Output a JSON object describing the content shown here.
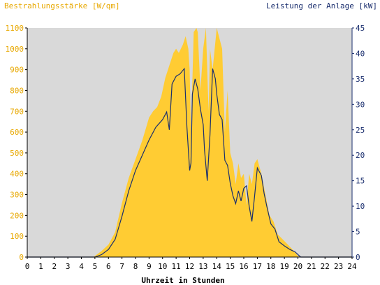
{
  "chart_data": {
    "type": "area",
    "left_axis_title": "Bestrahlungsstärke [W/qm]",
    "right_axis_title": "Leistung der Anlage [kW]",
    "xlabel": "Uhrzeit in Stunden",
    "x_ticks": [
      "0",
      "1",
      "2",
      "3",
      "4",
      "5",
      "6",
      "7",
      "8",
      "9",
      "10",
      "11",
      "12",
      "13",
      "14",
      "15",
      "16",
      "17",
      "18",
      "19",
      "20",
      "21",
      "22",
      "23",
      "24"
    ],
    "y_left_ticks": [
      "0",
      "100",
      "200",
      "300",
      "400",
      "500",
      "600",
      "700",
      "800",
      "900",
      "1000",
      "1100"
    ],
    "y_right_ticks": [
      "0",
      "5",
      "10",
      "15",
      "20",
      "25",
      "30",
      "35",
      "40",
      "45"
    ],
    "xlim": [
      0,
      24
    ],
    "ylim_left": [
      0,
      1100
    ],
    "ylim_right": [
      0,
      45
    ],
    "colors": {
      "irradiance": "#ffcc33",
      "power": "#1a2e6e",
      "plot_bg": "#d9d9d9",
      "left_axis_text": "#e8a800",
      "right_axis_text": "#1a2e6e",
      "axis": "#000000"
    },
    "series": [
      {
        "axis": "left",
        "x": [
          0,
          4.9,
          5.2,
          5.5,
          6.0,
          6.5,
          7.0,
          7.5,
          8.0,
          8.5,
          9.0,
          9.3,
          9.6,
          9.9,
          10.2,
          10.5,
          10.8,
          11.0,
          11.2,
          11.5,
          11.7,
          11.9,
          12.0,
          12.1,
          12.3,
          12.5,
          12.6,
          12.8,
          13.0,
          13.2,
          13.4,
          13.5,
          13.7,
          14.0,
          14.2,
          14.4,
          14.6,
          14.8,
          15.0,
          15.2,
          15.4,
          15.6,
          15.8,
          16.0,
          16.2,
          16.4,
          16.6,
          16.8,
          17.0,
          17.3,
          17.6,
          17.9,
          18.2,
          18.5,
          18.8,
          19.1,
          19.4,
          19.7,
          20.0,
          20.2,
          24
        ],
        "values": [
          0,
          0,
          15,
          30,
          60,
          120,
          260,
          380,
          470,
          560,
          670,
          700,
          720,
          770,
          860,
          920,
          980,
          1000,
          980,
          1020,
          1060,
          1000,
          900,
          600,
          1080,
          1100,
          1080,
          800,
          1000,
          1100,
          700,
          1000,
          900,
          1100,
          1050,
          1000,
          600,
          800,
          500,
          450,
          350,
          450,
          380,
          400,
          250,
          400,
          350,
          450,
          470,
          400,
          300,
          200,
          170,
          110,
          90,
          70,
          50,
          30,
          5,
          0,
          0
        ]
      },
      {
        "axis": "right",
        "x": [
          0,
          5.0,
          5.5,
          6.0,
          6.5,
          7.0,
          7.5,
          8.0,
          8.5,
          9.0,
          9.5,
          10.0,
          10.3,
          10.5,
          10.7,
          11.0,
          11.3,
          11.6,
          11.8,
          12.0,
          12.1,
          12.2,
          12.4,
          12.6,
          12.8,
          13.0,
          13.1,
          13.3,
          13.5,
          13.7,
          13.9,
          14.0,
          14.2,
          14.4,
          14.6,
          14.8,
          15.0,
          15.2,
          15.4,
          15.6,
          15.8,
          16.0,
          16.2,
          16.4,
          16.6,
          16.8,
          17.0,
          17.3,
          17.5,
          17.7,
          18.0,
          18.3,
          18.6,
          19.0,
          19.4,
          19.8,
          20.0,
          20.2,
          24
        ],
        "values": [
          0,
          0,
          0.5,
          1.5,
          3.5,
          8,
          13,
          17,
          20,
          23,
          25.5,
          27,
          28.5,
          25,
          34,
          35.5,
          36,
          37,
          25.5,
          17,
          18.5,
          32,
          35,
          33,
          29,
          26,
          21,
          15,
          24,
          37,
          35,
          32,
          28,
          27,
          19,
          18,
          14.5,
          12,
          10.5,
          13,
          11,
          13.5,
          14,
          10,
          7,
          12,
          17.5,
          16,
          12.5,
          10,
          6.5,
          5.5,
          3,
          2.2,
          1.5,
          1,
          0.5,
          0,
          0
        ]
      }
    ]
  }
}
